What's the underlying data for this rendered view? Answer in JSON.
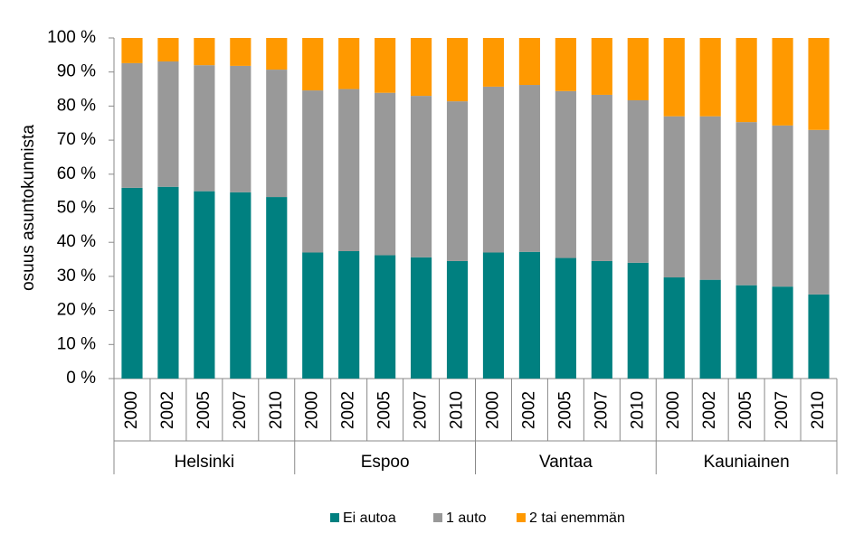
{
  "chart_data": {
    "type": "stacked_bar",
    "y_label": "osuus asuntokunnista",
    "categories": [
      "2000",
      "2002",
      "2005",
      "2007",
      "2010",
      "2000",
      "2002",
      "2005",
      "2007",
      "2010",
      "2000",
      "2002",
      "2005",
      "2007",
      "2010",
      "2000",
      "2002",
      "2005",
      "2007",
      "2010"
    ],
    "groups": [
      "Helsinki",
      "Espoo",
      "Vantaa",
      "Kauniainen"
    ],
    "series": [
      {
        "name": "Ei autoa",
        "color": "#008080",
        "values": [
          56.0,
          56.3,
          55.0,
          54.7,
          53.3,
          37.0,
          37.4,
          36.2,
          35.6,
          34.5,
          37.0,
          37.2,
          35.4,
          34.5,
          34.0,
          29.7,
          29.0,
          27.4,
          27.0,
          24.7
        ]
      },
      {
        "name": "1 auto",
        "color": "#999999",
        "values": [
          36.6,
          36.8,
          37.0,
          37.1,
          37.4,
          47.6,
          47.6,
          47.7,
          47.4,
          46.9,
          48.7,
          49.0,
          49.0,
          48.8,
          47.7,
          47.3,
          48.0,
          47.9,
          47.3,
          48.3
        ]
      },
      {
        "name": "2 tai enemmän",
        "color": "#ff9900",
        "values": [
          7.4,
          6.9,
          8.0,
          8.2,
          9.3,
          15.4,
          15.0,
          16.1,
          17.0,
          18.6,
          14.3,
          13.8,
          15.6,
          16.7,
          18.3,
          23.0,
          23.0,
          24.7,
          25.7,
          27.0
        ]
      }
    ],
    "ylim": [
      0,
      100
    ],
    "yticks": [
      {
        "value": 0,
        "label": "0 %"
      },
      {
        "value": 10,
        "label": "10 %"
      },
      {
        "value": 20,
        "label": "20 %"
      },
      {
        "value": 30,
        "label": "30 %"
      },
      {
        "value": 40,
        "label": "40 %"
      },
      {
        "value": 50,
        "label": "50 %"
      },
      {
        "value": 60,
        "label": "60 %"
      },
      {
        "value": 70,
        "label": "70 %"
      },
      {
        "value": 80,
        "label": "80 %"
      },
      {
        "value": 90,
        "label": "90 %"
      },
      {
        "value": 100,
        "label": "100 %"
      }
    ],
    "legend": "bottom"
  }
}
